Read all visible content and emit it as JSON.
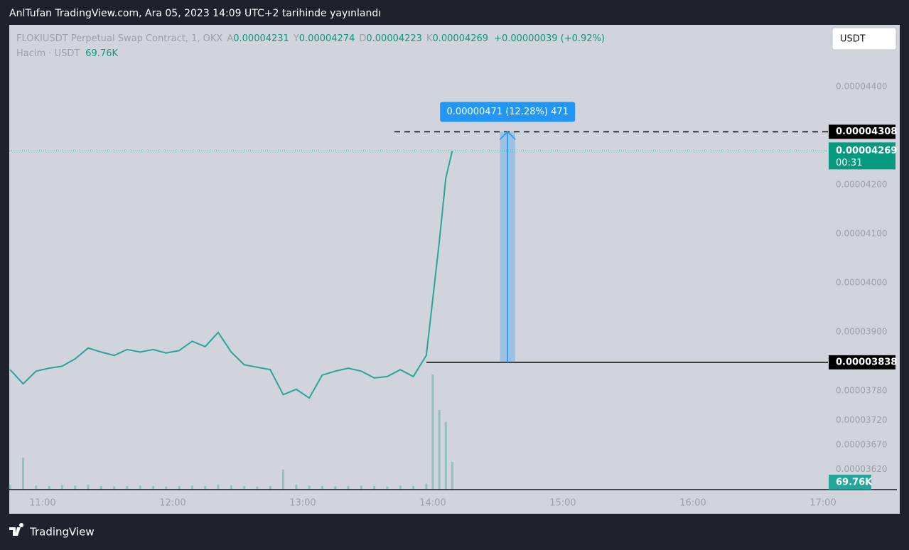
{
  "header": {
    "title": "AnlTufan TradingView.com, Ara 05, 2023 14:09 UTC+2 tarihinde yayınlandı"
  },
  "footer": {
    "brand": "TradingView"
  },
  "toolbar": {
    "currency": "USDT"
  },
  "legend": {
    "symbol": "FLOKIUSDT Perpetual Swap Contract, 1, OKX",
    "open_label": "A",
    "open": "0.00004231",
    "high_label": "Y",
    "high": "0.00004274",
    "low_label": "D",
    "low": "0.00004223",
    "close_label": "K",
    "close": "0.00004269",
    "change": "+0.00000039 (+0.92%)",
    "volume_label": "Hacim · USDT",
    "volume": "69.76K"
  },
  "chart_data": {
    "type": "line",
    "x": [
      645,
      651,
      657,
      663,
      669,
      675,
      681,
      687,
      693,
      699,
      705,
      711,
      717,
      723,
      729,
      735,
      741,
      747,
      753,
      759,
      765,
      771,
      777,
      783,
      789,
      795,
      801,
      807,
      813,
      819,
      825,
      831,
      837,
      840,
      843,
      846,
      849
    ],
    "xlim": [
      644.6,
      1022.3
    ],
    "xticks": [
      {
        "value": 660,
        "label": "11:00"
      },
      {
        "value": 720,
        "label": "12:00"
      },
      {
        "value": 780,
        "label": "13:00"
      },
      {
        "value": 840,
        "label": "14:00"
      },
      {
        "value": 900,
        "label": "15:00"
      },
      {
        "value": 960,
        "label": "16:00"
      },
      {
        "value": 1020,
        "label": "17:00"
      }
    ],
    "ylim": [
      3.577e-05,
      4.526e-05
    ],
    "yticks": [
      {
        "value": 4.4e-05,
        "label": "0.00004400"
      },
      {
        "value": 4.2e-05,
        "label": "0.00004200"
      },
      {
        "value": 4.1e-05,
        "label": "0.00004100"
      },
      {
        "value": 4e-05,
        "label": "0.00004000"
      },
      {
        "value": 3.9e-05,
        "label": "0.00003900"
      },
      {
        "value": 3.78e-05,
        "label": "0.00003780"
      },
      {
        "value": 3.72e-05,
        "label": "0.00003720"
      },
      {
        "value": 3.67e-05,
        "label": "0.00003670"
      },
      {
        "value": 3.62e-05,
        "label": "0.00003620"
      }
    ],
    "y2lim": [
      0,
      1171000
    ],
    "grid": false,
    "series": [
      {
        "color": "#26a69a",
        "values": [
          3.823e-05,
          3.794e-05,
          3.82e-05,
          3.826e-05,
          3.83e-05,
          3.845e-05,
          3.867e-05,
          3.859e-05,
          3.852e-05,
          3.864e-05,
          3.859e-05,
          3.864e-05,
          3.857e-05,
          3.862e-05,
          3.881e-05,
          3.87e-05,
          3.899e-05,
          3.859e-05,
          3.833e-05,
          3.828e-05,
          3.823e-05,
          3.772e-05,
          3.783e-05,
          3.765e-05,
          3.812e-05,
          3.82e-05,
          3.826e-05,
          3.82e-05,
          3.806e-05,
          3.809e-05,
          3.823e-05,
          3.809e-05,
          3.852e-05,
          3.968e-05,
          4.084e-05,
          4.214e-05,
          4.269e-05
        ]
      },
      {
        "axis": "y2",
        "color": "#7fbdb5",
        "values": [
          12000,
          80000,
          10000,
          9000,
          11000,
          10000,
          12000,
          9000,
          8000,
          9000,
          10000,
          9000,
          8000,
          9000,
          10000,
          9000,
          12000,
          11000,
          9000,
          8000,
          9000,
          50000,
          12000,
          10000,
          9000,
          8000,
          9000,
          10000,
          9000,
          8000,
          10000,
          9000,
          15000,
          290000,
          200000,
          170000,
          69760
        ]
      }
    ],
    "price_lines": [
      {
        "value": 4.308e-05,
        "label": "0.00004308",
        "style": "dashed"
      },
      {
        "value": 3.838e-05,
        "label": "0.00003838",
        "style": "solid"
      }
    ],
    "current_price": {
      "value": 4.269e-05,
      "label": "0.00004269",
      "countdown": "00:31"
    },
    "measure": {
      "label": "0.00000471 (12.28%) 471",
      "from": 3.838e-05,
      "to": 4.308e-05,
      "x": [
        871,
        878
      ]
    },
    "volume_badge": "69.76K"
  }
}
